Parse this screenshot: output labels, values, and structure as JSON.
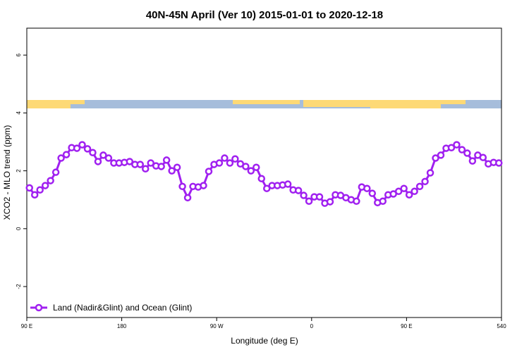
{
  "chart_data": {
    "type": "line",
    "title": "40N-45N April (Ver 10)   2015-01-01 to 2020-12-18",
    "x_label": "Longitude (deg E)",
    "y_label": "XCO2 - MLO trend (ppm)",
    "x": [
      92.5,
      97.5,
      102.5,
      107.5,
      112.5,
      117.5,
      122.5,
      127.5,
      132.5,
      137.5,
      142.5,
      147.5,
      152.5,
      157.5,
      162.5,
      167.5,
      172.5,
      177.5,
      182.5,
      187.5,
      192.5,
      197.5,
      202.5,
      207.5,
      212.5,
      217.5,
      222.5,
      227.5,
      232.5,
      237.5,
      242.5,
      247.5,
      252.5,
      257.5,
      262.5,
      267.5,
      272.5,
      277.5,
      282.5,
      287.5,
      292.5,
      297.5,
      302.5,
      307.5,
      312.5,
      317.5,
      322.5,
      327.5,
      332.5,
      337.5,
      342.5,
      347.5,
      352.5,
      357.5,
      362.5,
      367.5,
      372.5,
      377.5,
      382.5,
      387.5,
      392.5,
      397.5,
      402.5,
      407.5,
      412.5,
      417.5,
      422.5,
      427.5,
      432.5,
      437.5,
      442.5,
      447.5,
      452.5,
      457.5,
      462.5,
      467.5,
      472.5,
      477.5,
      482.5,
      487.5,
      492.5,
      497.5,
      502.5,
      507.5,
      512.5,
      517.5,
      522.5,
      527.5,
      532.5,
      537.5
    ],
    "series": [
      {
        "name": "Land (Nadir&Glint) and Ocean (Glint)",
        "color": "#a020f0",
        "values": [
          1.41,
          1.17,
          1.34,
          1.49,
          1.66,
          1.95,
          2.44,
          2.56,
          2.8,
          2.78,
          2.9,
          2.76,
          2.63,
          2.32,
          2.54,
          2.44,
          2.27,
          2.27,
          2.29,
          2.32,
          2.22,
          2.22,
          2.07,
          2.27,
          2.17,
          2.15,
          2.37,
          2.0,
          2.12,
          1.46,
          1.07,
          1.46,
          1.44,
          1.49,
          1.98,
          2.22,
          2.27,
          2.44,
          2.27,
          2.41,
          2.24,
          2.15,
          2.0,
          2.12,
          1.73,
          1.39,
          1.49,
          1.49,
          1.51,
          1.54,
          1.34,
          1.32,
          1.15,
          0.95,
          1.1,
          1.1,
          0.88,
          0.93,
          1.17,
          1.15,
          1.07,
          1.0,
          0.95,
          1.44,
          1.39,
          1.22,
          0.9,
          0.95,
          1.17,
          1.2,
          1.29,
          1.39,
          1.17,
          1.29,
          1.46,
          1.63,
          1.93,
          2.44,
          2.54,
          2.78,
          2.8,
          2.9,
          2.73,
          2.61,
          2.34,
          2.54,
          2.46,
          2.24,
          2.29,
          2.27
        ]
      }
    ],
    "xlim": [
      90,
      540
    ],
    "xticks": [
      {
        "value": 90,
        "label": "90 E"
      },
      180,
      {
        "value": 270,
        "label": "90 W"
      },
      {
        "value": 360,
        "label": "0"
      },
      {
        "value": 450,
        "label": "90 E"
      },
      540
    ],
    "ylim": [
      -3.07,
      6.93
    ],
    "yticks": [
      -2,
      0,
      2,
      4,
      6
    ],
    "legend": "bottomleft"
  }
}
